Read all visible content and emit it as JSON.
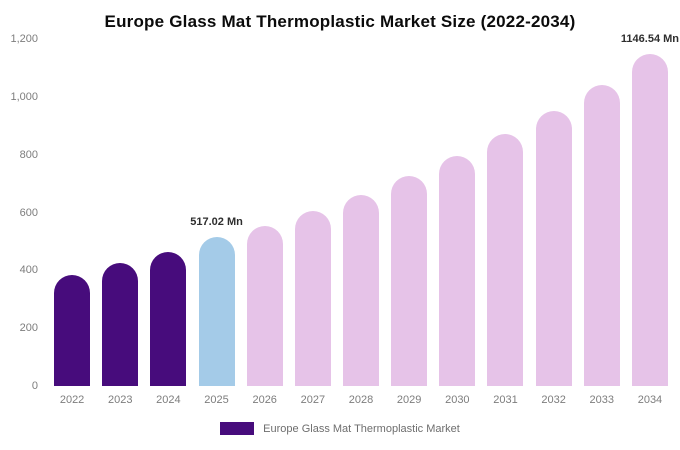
{
  "chart_data": {
    "type": "bar",
    "title": "Europe Glass Mat Thermoplastic Market Size (2022-2034)",
    "xlabel": "",
    "ylabel": "",
    "categories": [
      "2022",
      "2023",
      "2024",
      "2025",
      "2026",
      "2027",
      "2028",
      "2029",
      "2030",
      "2031",
      "2032",
      "2033",
      "2034"
    ],
    "values": [
      385,
      425,
      465,
      517.02,
      555,
      605,
      660,
      725,
      795,
      870,
      950,
      1040,
      1146.54
    ],
    "unit": "Mn",
    "ylim": [
      0,
      1200
    ],
    "yticks": [
      0,
      200,
      400,
      600,
      800,
      1000,
      1200
    ],
    "ytick_labels": [
      "0",
      "200",
      "400",
      "600",
      "800",
      "1,000",
      "1,200"
    ],
    "grid": "off",
    "bar_colors": [
      "#470c7c",
      "#470c7c",
      "#470c7c",
      "#a4cbe8",
      "#e6c3e8",
      "#e6c3e8",
      "#e6c3e8",
      "#e6c3e8",
      "#e6c3e8",
      "#e6c3e8",
      "#e6c3e8",
      "#e6c3e8",
      "#e6c3e8"
    ],
    "annotations": [
      {
        "category": "2025",
        "text": "517.02 Mn"
      },
      {
        "category": "2034",
        "text": "1146.54 Mn"
      }
    ],
    "legend_position": "bottom",
    "legend": {
      "label": "Europe Glass Mat Thermoplastic Market",
      "color": "#470c7c"
    },
    "colors": {
      "historical": "#470c7c",
      "current_year": "#a4cbe8",
      "forecast": "#e6c3e8",
      "axis_text": "#7d7d7d",
      "annotation_text": "#2e2e2e"
    }
  }
}
